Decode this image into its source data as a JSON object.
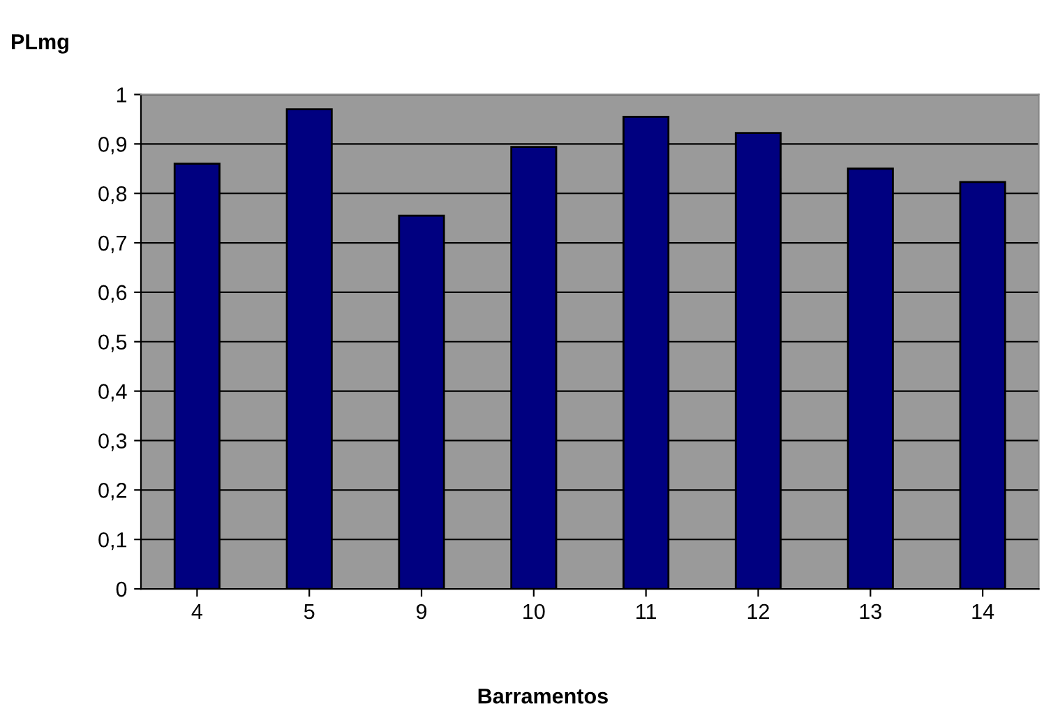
{
  "chart_data": {
    "type": "bar",
    "ylabel": "PLmg",
    "xlabel": "Barramentos",
    "categories": [
      "4",
      "5",
      "9",
      "10",
      "11",
      "12",
      "13",
      "14"
    ],
    "values": [
      0.86,
      0.97,
      0.755,
      0.894,
      0.955,
      0.922,
      0.85,
      0.823
    ],
    "color": "#000080",
    "ylim": [
      0,
      1
    ],
    "yticks": [
      {
        "value": 0,
        "label": "0"
      },
      {
        "value": 0.1,
        "label": "0,1"
      },
      {
        "value": 0.2,
        "label": "0,2"
      },
      {
        "value": 0.3,
        "label": "0,3"
      },
      {
        "value": 0.4,
        "label": "0,4"
      },
      {
        "value": 0.5,
        "label": "0,5"
      },
      {
        "value": 0.6,
        "label": "0,6"
      },
      {
        "value": 0.7,
        "label": "0,7"
      },
      {
        "value": 0.8,
        "label": "0,8"
      },
      {
        "value": 0.9,
        "label": "0,9"
      },
      {
        "value": 1,
        "label": "1"
      }
    ],
    "grid": "y",
    "legend": false
  }
}
